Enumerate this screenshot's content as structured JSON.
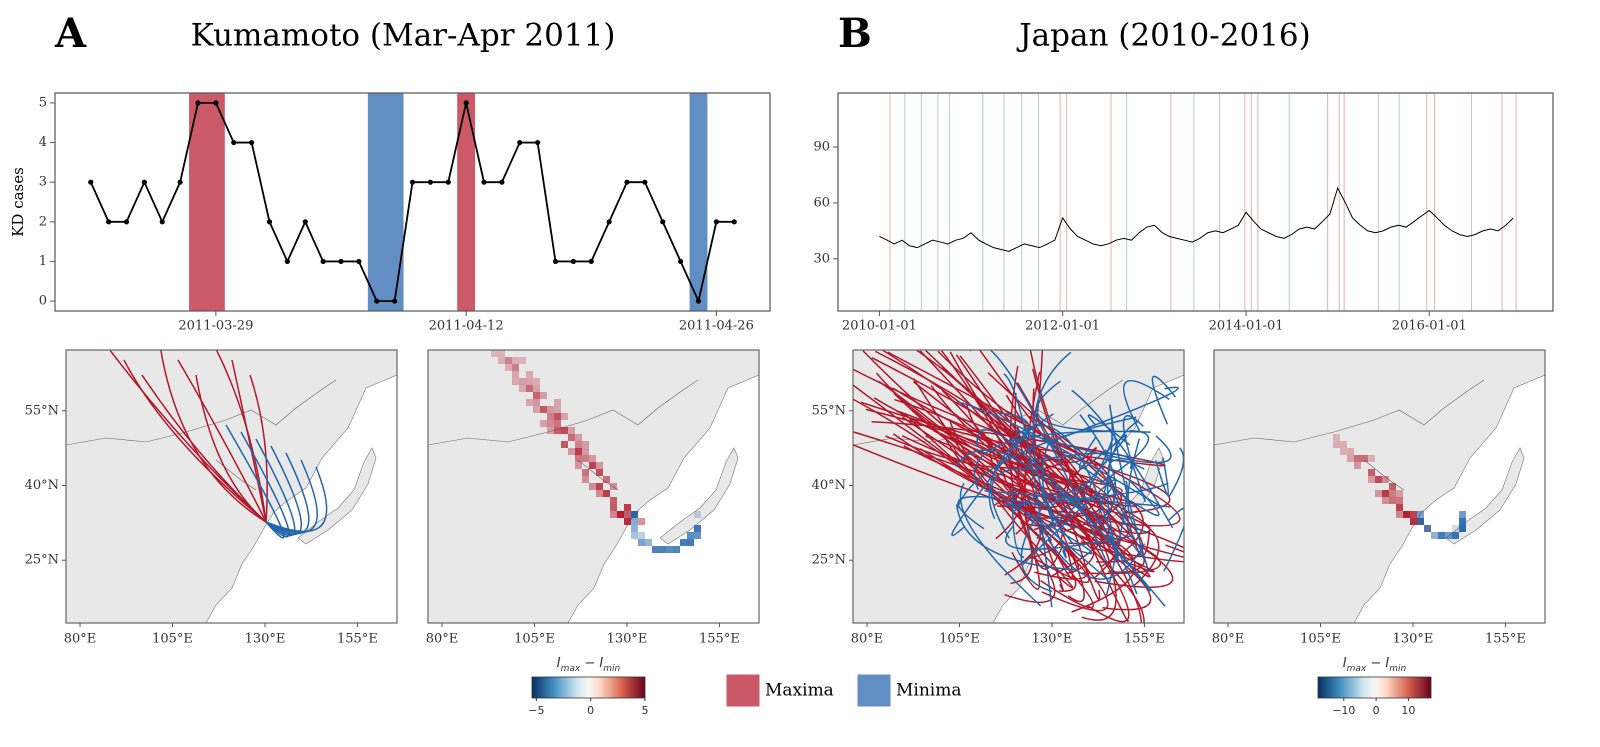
{
  "panels": [
    {
      "letter": "A",
      "title": "Kumamoto (Mar-Apr 2011)"
    },
    {
      "letter": "B",
      "title": "Japan (2010-2016)"
    }
  ],
  "legend": [
    {
      "name": "Maxima",
      "color": "#c8505f"
    },
    {
      "name": "Minima",
      "color": "#5b88c0"
    }
  ],
  "colorbars": [
    {
      "label_parts": [
        "I",
        "max",
        " − I",
        "min"
      ],
      "lim": [
        -5.4,
        5
      ],
      "ticks": [
        {
          "value": -5,
          "label": "−5"
        },
        0,
        5
      ]
    },
    {
      "label_parts": [
        "I",
        "max",
        " − I",
        "min"
      ],
      "lim": [
        -18,
        17
      ],
      "ticks": [
        {
          "value": -10,
          "label": "−10"
        },
        0,
        10
      ]
    }
  ],
  "chart_data": [
    {
      "type": "line",
      "ylabel": "KD cases",
      "markers": true,
      "x": [
        "2011-03-22",
        "2011-03-23",
        "2011-03-24",
        "2011-03-25",
        "2011-03-26",
        "2011-03-27",
        "2011-03-28",
        "2011-03-29",
        "2011-03-30",
        "2011-03-31",
        "2011-04-01",
        "2011-04-02",
        "2011-04-03",
        "2011-04-04",
        "2011-04-05",
        "2011-04-06",
        "2011-04-07",
        "2011-04-08",
        "2011-04-09",
        "2011-04-10",
        "2011-04-11",
        "2011-04-12",
        "2011-04-13",
        "2011-04-14",
        "2011-04-15",
        "2011-04-16",
        "2011-04-17",
        "2011-04-18",
        "2011-04-19",
        "2011-04-20",
        "2011-04-21",
        "2011-04-22",
        "2011-04-23",
        "2011-04-24",
        "2011-04-25",
        "2011-04-26",
        "2011-04-27"
      ],
      "values": [
        3,
        2,
        2,
        3,
        2,
        3,
        5,
        5,
        4,
        4,
        2,
        1,
        2,
        1,
        1,
        1,
        0,
        0,
        3,
        3,
        3,
        5,
        3,
        3,
        4,
        4,
        1,
        1,
        1,
        2,
        3,
        3,
        2,
        1,
        0,
        2,
        2
      ],
      "color": "#000000",
      "xlim": [
        "2011-03-20",
        "2011-04-29"
      ],
      "ylim": [
        -0.25,
        5.25
      ],
      "yticks": [
        0,
        1,
        2,
        3,
        4,
        5
      ],
      "xticks": [
        "2011-03-29",
        "2011-04-12",
        "2011-04-26"
      ],
      "maxima": [
        [
          "2011-03-28",
          "2011-03-29"
        ],
        [
          "2011-04-12",
          "2011-04-12"
        ]
      ],
      "minima": [
        [
          "2011-04-07",
          "2011-04-08"
        ],
        [
          "2011-04-25",
          "2011-04-25"
        ]
      ]
    },
    {
      "type": "line",
      "markers": false,
      "x": [
        "2010-01-01",
        "2010-02-01",
        "2010-03-01",
        "2010-04-01",
        "2010-05-01",
        "2010-06-01",
        "2010-07-01",
        "2010-08-01",
        "2010-09-01",
        "2010-10-01",
        "2010-11-01",
        "2010-12-01",
        "2011-01-01",
        "2011-02-01",
        "2011-03-01",
        "2011-04-01",
        "2011-05-01",
        "2011-06-01",
        "2011-07-01",
        "2011-08-01",
        "2011-09-01",
        "2011-10-01",
        "2011-11-01",
        "2011-12-01",
        "2012-01-01",
        "2012-02-01",
        "2012-03-01",
        "2012-04-01",
        "2012-05-01",
        "2012-06-01",
        "2012-07-01",
        "2012-08-01",
        "2012-09-01",
        "2012-10-01",
        "2012-11-01",
        "2012-12-01",
        "2013-01-01",
        "2013-02-01",
        "2013-03-01",
        "2013-04-01",
        "2013-05-01",
        "2013-06-01",
        "2013-07-01",
        "2013-08-01",
        "2013-09-01",
        "2013-10-01",
        "2013-11-01",
        "2013-12-01",
        "2014-01-01",
        "2014-02-01",
        "2014-03-01",
        "2014-04-01",
        "2014-05-01",
        "2014-06-01",
        "2014-07-01",
        "2014-08-01",
        "2014-09-01",
        "2014-10-01",
        "2014-11-01",
        "2014-12-01",
        "2015-01-01",
        "2015-02-01",
        "2015-03-01",
        "2015-04-01",
        "2015-05-01",
        "2015-06-01",
        "2015-07-01",
        "2015-08-01",
        "2015-09-01",
        "2015-10-01",
        "2015-11-01",
        "2015-12-01",
        "2016-01-01",
        "2016-02-01",
        "2016-03-01",
        "2016-04-01",
        "2016-05-01",
        "2016-06-01",
        "2016-07-01",
        "2016-08-01",
        "2016-09-01",
        "2016-10-01",
        "2016-11-01",
        "2016-12-01"
      ],
      "values": [
        42,
        40,
        38,
        40,
        37,
        36,
        38,
        40,
        39,
        38,
        40,
        41,
        44,
        40,
        38,
        36,
        35,
        34,
        36,
        38,
        37,
        36,
        38,
        40,
        52,
        46,
        42,
        40,
        38,
        37,
        38,
        40,
        41,
        40,
        44,
        47,
        48,
        44,
        42,
        41,
        40,
        39,
        41,
        44,
        45,
        44,
        46,
        48,
        55,
        50,
        46,
        44,
        42,
        41,
        43,
        46,
        47,
        46,
        50,
        54,
        68,
        60,
        52,
        48,
        45,
        44,
        45,
        47,
        48,
        47,
        50,
        53,
        56,
        52,
        48,
        45,
        43,
        42,
        43,
        45,
        46,
        45,
        48,
        52
      ],
      "color": "#000000",
      "xlim": [
        "2009-07-20",
        "2017-05-08"
      ],
      "ylim": [
        2,
        119
      ],
      "yticks": [
        30,
        60,
        90
      ],
      "xticks": [
        "2010-01-01",
        "2012-01-01",
        "2014-01-01",
        "2016-01-01"
      ],
      "maxima": [
        [
          "2010-02-10",
          "2010-02-10"
        ],
        [
          "2011-12-20",
          "2011-12-20"
        ],
        [
          "2012-01-15",
          "2012-01-15"
        ],
        [
          "2012-07-10",
          "2012-07-10"
        ],
        [
          "2013-03-05",
          "2013-03-05"
        ],
        [
          "2013-12-25",
          "2013-12-25"
        ],
        [
          "2014-01-20",
          "2014-01-20"
        ],
        [
          "2014-02-15",
          "2014-02-15"
        ],
        [
          "2014-11-20",
          "2014-11-20"
        ],
        [
          "2015-01-05",
          "2015-01-05"
        ],
        [
          "2015-01-25",
          "2015-01-25"
        ],
        [
          "2015-12-20",
          "2015-12-20"
        ],
        [
          "2016-01-20",
          "2016-01-20"
        ],
        [
          "2016-10-15",
          "2016-10-15"
        ],
        [
          "2016-12-10",
          "2016-12-10"
        ]
      ],
      "minima": [
        [
          "2010-04-10",
          "2010-04-10"
        ],
        [
          "2010-06-15",
          "2010-06-15"
        ],
        [
          "2010-08-20",
          "2010-08-20"
        ],
        [
          "2010-10-05",
          "2010-10-05"
        ],
        [
          "2011-02-15",
          "2011-02-15"
        ],
        [
          "2011-05-10",
          "2011-05-10"
        ],
        [
          "2011-07-20",
          "2011-07-20"
        ],
        [
          "2011-09-25",
          "2011-09-25"
        ],
        [
          "2012-09-10",
          "2012-09-10"
        ],
        [
          "2013-06-05",
          "2013-06-05"
        ],
        [
          "2013-09-15",
          "2013-09-15"
        ],
        [
          "2014-06-20",
          "2014-06-20"
        ],
        [
          "2015-06-10",
          "2015-06-10"
        ],
        [
          "2015-09-01",
          "2015-09-01"
        ],
        [
          "2016-06-15",
          "2016-06-15"
        ]
      ]
    },
    {
      "type": "map",
      "xlim": [
        76.2,
        165.7
      ],
      "ylim": [
        12.4,
        67.2
      ],
      "xticks": [
        {
          "value": 80,
          "label": "80°E"
        },
        {
          "value": 105,
          "label": "105°E"
        },
        {
          "value": 130,
          "label": "130°E"
        },
        {
          "value": 155,
          "label": "155°E"
        }
      ],
      "yticks": [
        {
          "value": 25,
          "label": "25°N"
        },
        {
          "value": 40,
          "label": "40°N"
        },
        {
          "value": 55,
          "label": "55°N"
        }
      ]
    },
    {
      "type": "map",
      "xlim": [
        76.2,
        165.7
      ],
      "ylim": [
        12.4,
        67.2
      ],
      "xticks": [
        {
          "value": 80,
          "label": "80°E"
        },
        {
          "value": 105,
          "label": "105°E"
        },
        {
          "value": 130,
          "label": "130°E"
        },
        {
          "value": 155,
          "label": "155°E"
        }
      ]
    },
    {
      "type": "map",
      "xlim": [
        76.2,
        165.7
      ],
      "ylim": [
        12.4,
        67.2
      ],
      "xticks": [
        {
          "value": 80,
          "label": "80°E"
        },
        {
          "value": 105,
          "label": "105°E"
        },
        {
          "value": 130,
          "label": "130°E"
        },
        {
          "value": 155,
          "label": "155°E"
        }
      ],
      "yticks": [
        {
          "value": 25,
          "label": "25°N"
        },
        {
          "value": 40,
          "label": "40°N"
        },
        {
          "value": 55,
          "label": "55°N"
        }
      ]
    },
    {
      "type": "map",
      "xlim": [
        76.2,
        165.7
      ],
      "ylim": [
        12.4,
        67.2
      ],
      "xticks": [
        {
          "value": 80,
          "label": "80°E"
        },
        {
          "value": 105,
          "label": "105°E"
        },
        {
          "value": 130,
          "label": "130°E"
        },
        {
          "value": 155,
          "label": "155°E"
        }
      ]
    }
  ]
}
